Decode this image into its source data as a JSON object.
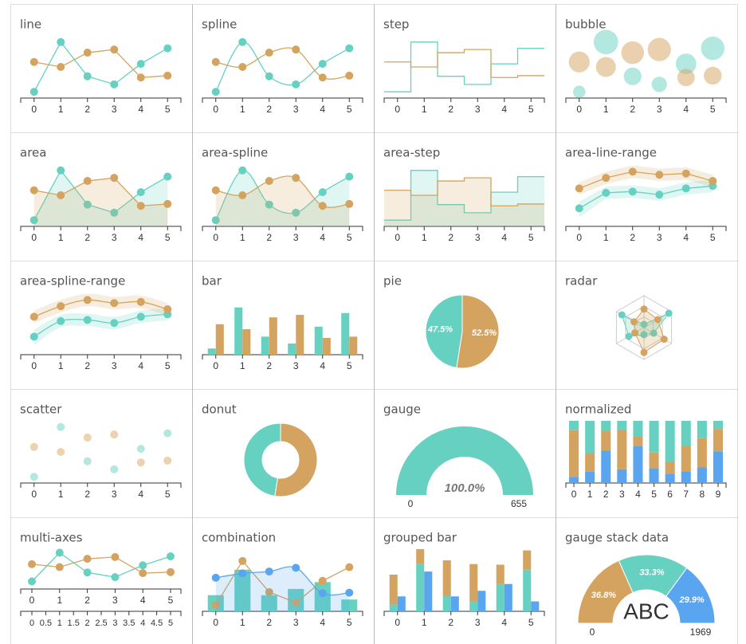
{
  "chart_data": [
    {
      "type": "line",
      "title": "line",
      "x": [
        0,
        1,
        2,
        3,
        4,
        5
      ],
      "ylim": [
        0,
        100
      ],
      "series": [
        {
          "color": "#66d1c1",
          "values": [
            10,
            90,
            35,
            22,
            55,
            80
          ]
        },
        {
          "color": "#d4a35f",
          "values": [
            58,
            50,
            73,
            78,
            33,
            36
          ]
        }
      ]
    },
    {
      "type": "spline",
      "title": "spline",
      "x": [
        0,
        1,
        2,
        3,
        4,
        5
      ],
      "ylim": [
        0,
        100
      ],
      "series": [
        {
          "color": "#66d1c1",
          "values": [
            10,
            90,
            35,
            22,
            55,
            80
          ]
        },
        {
          "color": "#d4a35f",
          "values": [
            58,
            50,
            73,
            78,
            33,
            36
          ]
        }
      ]
    },
    {
      "type": "step",
      "title": "step",
      "x": [
        0,
        1,
        2,
        3,
        4,
        5
      ],
      "ylim": [
        0,
        100
      ],
      "series": [
        {
          "color": "#66d1c1",
          "values": [
            10,
            90,
            35,
            22,
            55,
            80
          ]
        },
        {
          "color": "#d4a35f",
          "values": [
            58,
            50,
            73,
            78,
            33,
            36
          ]
        }
      ]
    },
    {
      "type": "bubble",
      "title": "bubble",
      "x": [
        0,
        1,
        2,
        3,
        4,
        5
      ],
      "ylim": [
        0,
        100
      ],
      "series": [
        {
          "color": "#66d1c1",
          "values": [
            10,
            90,
            35,
            22,
            55,
            80
          ]
        },
        {
          "color": "#d4a35f",
          "values": [
            58,
            50,
            73,
            78,
            33,
            36
          ]
        }
      ]
    },
    {
      "type": "area",
      "title": "area",
      "x": [
        0,
        1,
        2,
        3,
        4,
        5
      ],
      "ylim": [
        0,
        100
      ],
      "series": [
        {
          "color": "#66d1c1",
          "values": [
            10,
            90,
            35,
            22,
            55,
            80
          ]
        },
        {
          "color": "#d4a35f",
          "values": [
            58,
            50,
            73,
            78,
            33,
            36
          ]
        }
      ]
    },
    {
      "type": "area-spline",
      "title": "area-spline",
      "x": [
        0,
        1,
        2,
        3,
        4,
        5
      ],
      "ylim": [
        0,
        100
      ],
      "series": [
        {
          "color": "#66d1c1",
          "values": [
            10,
            90,
            35,
            22,
            55,
            80
          ]
        },
        {
          "color": "#d4a35f",
          "values": [
            58,
            50,
            73,
            78,
            33,
            36
          ]
        }
      ]
    },
    {
      "type": "area-step",
      "title": "area-step",
      "x": [
        0,
        1,
        2,
        3,
        4,
        5
      ],
      "ylim": [
        0,
        100
      ],
      "series": [
        {
          "color": "#66d1c1",
          "values": [
            10,
            90,
            35,
            22,
            55,
            80
          ]
        },
        {
          "color": "#d4a35f",
          "values": [
            58,
            50,
            73,
            78,
            33,
            36
          ]
        }
      ]
    },
    {
      "type": "area-line-range",
      "title": "area-line-range",
      "x": [
        0,
        1,
        2,
        3,
        4,
        5
      ],
      "ylim": [
        0,
        100
      ],
      "series": [
        {
          "color": "#66d1c1",
          "values": [
            29,
            54,
            56,
            51,
            61,
            65
          ],
          "low": [
            15,
            44,
            46,
            41,
            51,
            55
          ],
          "high": [
            40,
            64,
            66,
            61,
            71,
            75
          ]
        },
        {
          "color": "#d4a35f",
          "values": [
            61,
            78,
            88,
            83,
            85,
            73
          ],
          "low": [
            51,
            68,
            78,
            73,
            75,
            63
          ],
          "high": [
            71,
            88,
            98,
            93,
            95,
            83
          ]
        }
      ]
    },
    {
      "type": "area-spline-range",
      "title": "area-spline-range",
      "x": [
        0,
        1,
        2,
        3,
        4,
        5
      ],
      "ylim": [
        0,
        100
      ],
      "series": [
        {
          "color": "#66d1c1",
          "values": [
            29,
            54,
            56,
            51,
            61,
            65
          ],
          "low": [
            15,
            44,
            46,
            41,
            51,
            55
          ],
          "high": [
            40,
            64,
            66,
            61,
            71,
            75
          ]
        },
        {
          "color": "#d4a35f",
          "values": [
            61,
            78,
            88,
            83,
            85,
            73
          ],
          "low": [
            51,
            68,
            78,
            73,
            75,
            63
          ],
          "high": [
            71,
            88,
            98,
            93,
            95,
            83
          ]
        }
      ]
    },
    {
      "type": "bar",
      "title": "bar",
      "x": [
        0,
        1,
        2,
        3,
        4,
        5
      ],
      "ylim": [
        0,
        100
      ],
      "series": [
        {
          "color": "#66d1c1",
          "values": [
            10,
            76,
            29,
            18,
            45,
            67
          ]
        },
        {
          "color": "#d4a35f",
          "values": [
            49,
            41,
            60,
            64,
            27,
            29
          ]
        }
      ]
    },
    {
      "type": "pie",
      "title": "pie",
      "values": [
        52.5,
        47.5
      ],
      "value_labels": [
        "52.5%",
        "47.5%"
      ],
      "colors": [
        "#d4a35f",
        "#66d1c1"
      ]
    },
    {
      "type": "radar",
      "title": "radar",
      "ylim": [
        0,
        100
      ],
      "series": [
        {
          "color": "#66d1c1",
          "values": [
            10,
            90,
            35,
            22,
            55,
            80
          ]
        },
        {
          "color": "#d4a35f",
          "values": [
            58,
            50,
            73,
            78,
            33,
            36
          ]
        }
      ]
    },
    {
      "type": "scatter",
      "title": "scatter",
      "x": [
        0,
        1,
        2,
        3,
        4,
        5
      ],
      "ylim": [
        0,
        100
      ],
      "series": [
        {
          "color": "#b3e8df",
          "values": [
            10,
            90,
            35,
            22,
            55,
            80
          ]
        },
        {
          "color": "#ecd2ad",
          "values": [
            58,
            50,
            73,
            78,
            33,
            36
          ]
        }
      ]
    },
    {
      "type": "donut",
      "title": "donut",
      "values": [
        52.5,
        47.5
      ],
      "colors": [
        "#d4a35f",
        "#66d1c1"
      ]
    },
    {
      "type": "gauge",
      "title": "gauge",
      "values": [
        655
      ],
      "value_labels": [
        "100.0%"
      ],
      "colors": [
        "#66d1c1"
      ],
      "min": 0,
      "max": 655
    },
    {
      "type": "bar",
      "title": "normalized",
      "normalized": true,
      "x": [
        0,
        1,
        2,
        3,
        4,
        5,
        6,
        7,
        8,
        9
      ],
      "ylim": [
        0,
        100
      ],
      "series": [
        {
          "color": "#5aa5f0",
          "values": [
            10,
            18,
            52,
            22,
            59,
            24,
            15,
            19,
            25,
            51
          ]
        },
        {
          "color": "#d4a35f",
          "values": [
            75,
            30,
            32,
            64,
            16,
            25,
            19,
            40,
            47,
            36
          ]
        },
        {
          "color": "#66d1c1",
          "values": [
            15,
            52,
            16,
            14,
            25,
            51,
            66,
            41,
            28,
            13
          ]
        }
      ]
    },
    {
      "type": "line",
      "title": "multi-axes",
      "x": [
        0,
        1,
        2,
        3,
        4,
        5
      ],
      "xlim": [
        0,
        5
      ],
      "ylim": [
        0,
        100
      ],
      "x2ticks": [
        0,
        0.5,
        1,
        1.5,
        2,
        2.5,
        3,
        3.5,
        4,
        4.5,
        5
      ],
      "series": [
        {
          "color": "#66d1c1",
          "values": [
            10,
            90,
            35,
            22,
            55,
            80
          ]
        },
        {
          "color": "#d4a35f",
          "values": [
            58,
            50,
            73,
            78,
            33,
            36
          ]
        }
      ]
    },
    {
      "type": "combination",
      "title": "combination",
      "x": [
        0,
        1,
        2,
        3,
        4,
        5
      ],
      "ylim": [
        0,
        100
      ],
      "series": [
        {
          "type": "bar",
          "color": "#66d1c1",
          "values": [
            26,
            67,
            26,
            36,
            47,
            19
          ]
        },
        {
          "type": "line",
          "color": "#d4a35f",
          "values": [
            10,
            81,
            31,
            14,
            49,
            71
          ]
        },
        {
          "type": "area-spline",
          "color": "#5aa5f0",
          "values": [
            54,
            61,
            64,
            70,
            29,
            30
          ]
        }
      ]
    },
    {
      "type": "bar",
      "title": "grouped bar",
      "x": [
        0,
        1,
        2,
        3,
        4,
        5
      ],
      "ylim": [
        0,
        100
      ],
      "groups": [
        [
          0,
          1
        ]
      ],
      "series": [
        {
          "color": "#66d1c1",
          "values": [
            11,
            76,
            25,
            16,
            44,
            67
          ]
        },
        {
          "color": "#d4a35f",
          "values": [
            48,
            24,
            57,
            60,
            31,
            31
          ]
        },
        {
          "color": "#5aa5f0",
          "values": [
            24,
            64,
            24,
            33,
            44,
            16
          ]
        }
      ]
    },
    {
      "type": "gauge",
      "title": "gauge stack data",
      "center_label": "ABC",
      "values": [
        36.8,
        33.3,
        29.9
      ],
      "value_labels": [
        "36.8%",
        "33.3%",
        "29.9%"
      ],
      "colors": [
        "#d4a35f",
        "#66d1c1",
        "#5aa5f0"
      ],
      "min": 0,
      "max": 1969
    }
  ]
}
